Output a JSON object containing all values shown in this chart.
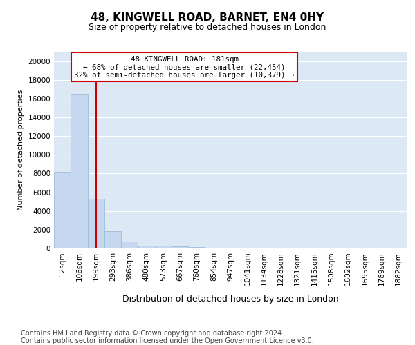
{
  "title": "48, KINGWELL ROAD, BARNET, EN4 0HY",
  "subtitle": "Size of property relative to detached houses in London",
  "xlabel": "Distribution of detached houses by size in London",
  "ylabel": "Number of detached properties",
  "bar_color": "#c5d8ef",
  "bar_edge_color": "#a0bcd8",
  "background_color": "#dce9f5",
  "grid_color": "#ffffff",
  "annotation_text": "48 KINGWELL ROAD: 181sqm\n← 68% of detached houses are smaller (22,454)\n32% of semi-detached houses are larger (10,379) →",
  "annotation_box_color": "#ffffff",
  "annotation_box_edge_color": "#cc0000",
  "vline_color": "#cc0000",
  "vline_x_index": 1,
  "categories": [
    12,
    106,
    199,
    293,
    386,
    480,
    573,
    667,
    760,
    854,
    947,
    1041,
    1134,
    1228,
    1321,
    1415,
    1508,
    1602,
    1695,
    1789,
    1882
  ],
  "values": [
    8100,
    16500,
    5300,
    1850,
    750,
    330,
    260,
    210,
    180,
    0,
    0,
    0,
    0,
    0,
    0,
    0,
    0,
    0,
    0,
    0,
    0
  ],
  "ylim": [
    0,
    21000
  ],
  "yticks": [
    0,
    2000,
    4000,
    6000,
    8000,
    10000,
    12000,
    14000,
    16000,
    18000,
    20000
  ],
  "footer_text": "Contains HM Land Registry data © Crown copyright and database right 2024.\nContains public sector information licensed under the Open Government Licence v3.0.",
  "bin_width": 93,
  "title_fontsize": 11,
  "subtitle_fontsize": 9,
  "ylabel_fontsize": 8,
  "xlabel_fontsize": 9,
  "tick_fontsize": 7.5,
  "footer_fontsize": 7,
  "annot_fontsize": 7.8
}
